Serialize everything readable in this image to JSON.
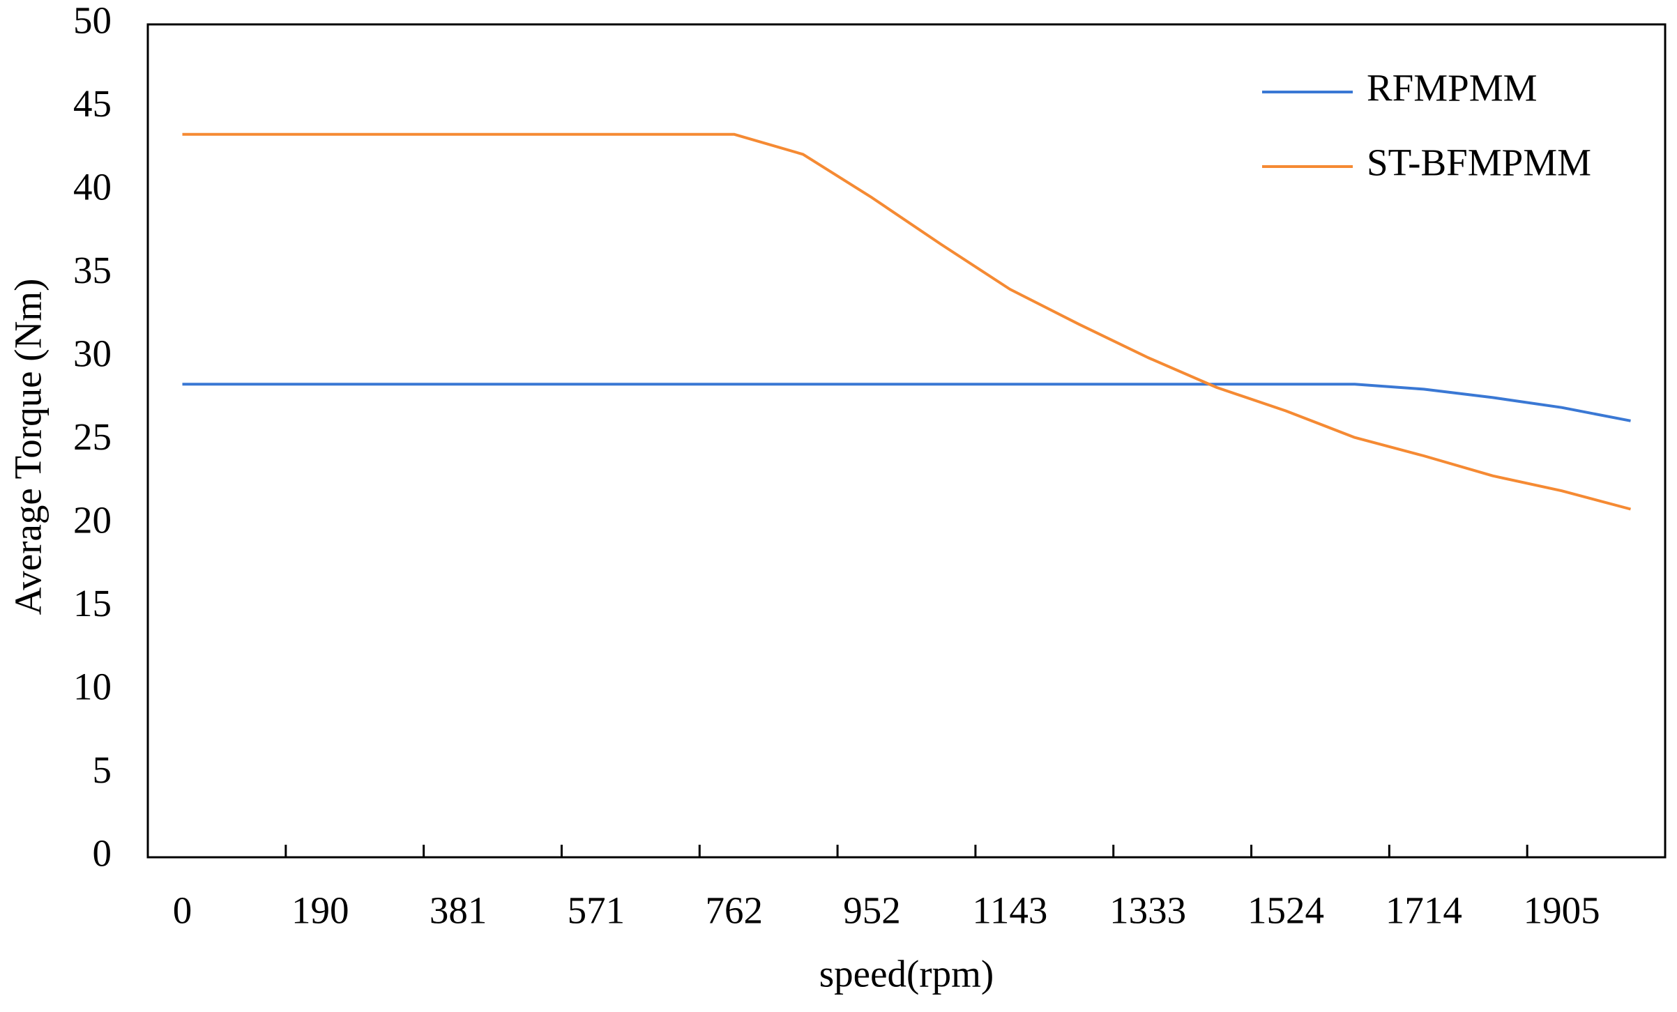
{
  "chart_data": {
    "type": "line",
    "x_label": "speed(rpm)",
    "y_label": "Average Torque (Nm)",
    "categories": [
      "0",
      null,
      "190",
      null,
      "381",
      null,
      "571",
      null,
      "762",
      null,
      "952",
      null,
      "1143",
      null,
      "1333",
      null,
      "1524",
      null,
      "1714",
      null,
      "1905",
      null
    ],
    "series": [
      {
        "name": "RFMPMM",
        "color": "#3a78d4",
        "values": [
          28.4,
          28.4,
          28.4,
          28.4,
          28.4,
          28.4,
          28.4,
          28.4,
          28.4,
          28.4,
          28.4,
          28.4,
          28.4,
          28.4,
          28.4,
          28.4,
          28.4,
          28.4,
          28.1,
          27.6,
          27.0,
          26.2
        ]
      },
      {
        "name": "ST-BFMPMM",
        "color": "#f58a33",
        "values": [
          43.4,
          43.4,
          43.4,
          43.4,
          43.4,
          43.4,
          43.4,
          43.4,
          43.4,
          42.2,
          39.6,
          36.8,
          34.1,
          32.0,
          30.0,
          28.2,
          26.8,
          25.2,
          24.1,
          22.9,
          22.0,
          20.9
        ]
      }
    ],
    "ylim": [
      0,
      50
    ],
    "yticks": [
      0,
      5,
      10,
      15,
      20,
      25,
      30,
      35,
      40,
      45,
      50
    ],
    "grid": false,
    "legend": "top-right"
  }
}
